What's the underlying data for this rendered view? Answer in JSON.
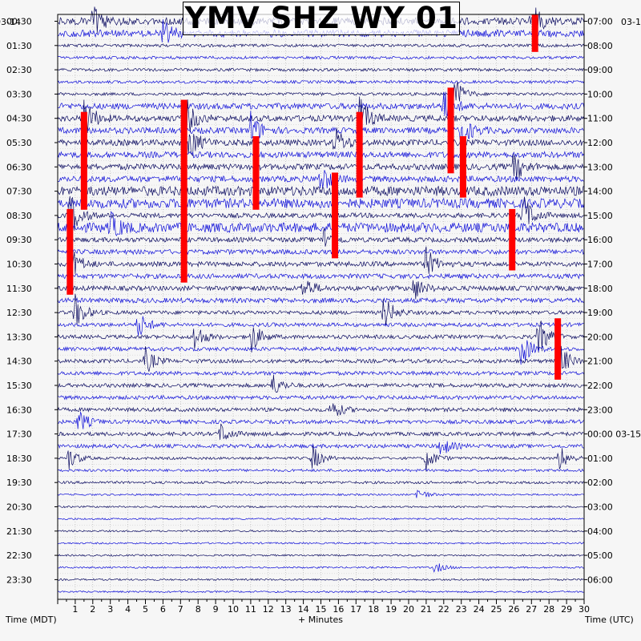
{
  "chart_data": {
    "type": "line",
    "title": "YMV SHZ WY 01",
    "xlabel": "+ Minutes",
    "left_axis_label": "Time (MDT)",
    "right_axis_label": "Time (UTC)",
    "left_date_label": "03-14",
    "right_date_label_top": "03-1",
    "right_date_label_midnight": "03-15",
    "x_ticks": [
      1,
      2,
      3,
      4,
      5,
      6,
      7,
      8,
      9,
      10,
      11,
      12,
      13,
      14,
      15,
      16,
      17,
      18,
      19,
      20,
      21,
      22,
      23,
      24,
      25,
      26,
      27,
      28,
      29,
      30
    ],
    "xlim": [
      0,
      30
    ],
    "left_time_labels": [
      "00:30",
      "01:30",
      "02:30",
      "03:30",
      "04:30",
      "05:30",
      "06:30",
      "07:30",
      "08:30",
      "09:30",
      "10:30",
      "11:30",
      "12:30",
      "13:30",
      "14:30",
      "15:30",
      "16:30",
      "17:30",
      "18:30",
      "19:30",
      "20:30",
      "21:30",
      "22:30",
      "23:30"
    ],
    "right_time_labels": [
      "07:00",
      "08:00",
      "09:00",
      "10:00",
      "11:00",
      "12:00",
      "13:00",
      "14:00",
      "15:00",
      "16:00",
      "17:00",
      "18:00",
      "19:00",
      "20:00",
      "21:00",
      "22:00",
      "23:00",
      "00:00",
      "01:00",
      "02:00",
      "03:00",
      "04:00",
      "05:00",
      "06:00"
    ],
    "trace_count": 48,
    "trace_colors": [
      "#0a0a60",
      "#1010d8"
    ],
    "clip_color": "#ff0000",
    "grid": true,
    "events": [
      {
        "trace": 0,
        "minute": 2,
        "amp": 1.4
      },
      {
        "trace": 1,
        "minute": 6,
        "amp": 1.0
      },
      {
        "trace": 0,
        "minute": 27,
        "amp": 1.8
      },
      {
        "trace": 6,
        "minute": 22.5,
        "amp": 2.0
      },
      {
        "trace": 7,
        "minute": 22,
        "amp": 1.5
      },
      {
        "trace": 8,
        "minute": 1.5,
        "amp": 2.0
      },
      {
        "trace": 8,
        "minute": 7.2,
        "amp": 2.2
      },
      {
        "trace": 8,
        "minute": 17.2,
        "amp": 2.0
      },
      {
        "trace": 9,
        "minute": 11,
        "amp": 1.6
      },
      {
        "trace": 9,
        "minute": 23,
        "amp": 1.6
      },
      {
        "trace": 10,
        "minute": 7.5,
        "amp": 1.5
      },
      {
        "trace": 10,
        "minute": 15.8,
        "amp": 1.4
      },
      {
        "trace": 12,
        "minute": 26,
        "amp": 1.4
      },
      {
        "trace": 13,
        "minute": 15,
        "amp": 1.3
      },
      {
        "trace": 16,
        "minute": 0.7,
        "amp": 2.2
      },
      {
        "trace": 16,
        "minute": 26.5,
        "amp": 2.0
      },
      {
        "trace": 17,
        "minute": 3,
        "amp": 1.2
      },
      {
        "trace": 18,
        "minute": 15.2,
        "amp": 1.2
      },
      {
        "trace": 20,
        "minute": 0.8,
        "amp": 1.4
      },
      {
        "trace": 20,
        "minute": 21,
        "amp": 1.4
      },
      {
        "trace": 22,
        "minute": 14,
        "amp": 1.1
      },
      {
        "trace": 22,
        "minute": 20.3,
        "amp": 1.1
      },
      {
        "trace": 24,
        "minute": 1,
        "amp": 1.6
      },
      {
        "trace": 24,
        "minute": 18.6,
        "amp": 1.6
      },
      {
        "trace": 25,
        "minute": 4.6,
        "amp": 1.2
      },
      {
        "trace": 26,
        "minute": 7.8,
        "amp": 1.3
      },
      {
        "trace": 26,
        "minute": 11,
        "amp": 1.6
      },
      {
        "trace": 26,
        "minute": 27.4,
        "amp": 1.8
      },
      {
        "trace": 27,
        "minute": 26.4,
        "amp": 1.6
      },
      {
        "trace": 28,
        "minute": 5,
        "amp": 1.2
      },
      {
        "trace": 28,
        "minute": 28.6,
        "amp": 1.6
      },
      {
        "trace": 30,
        "minute": 12.2,
        "amp": 1.1
      },
      {
        "trace": 32,
        "minute": 15.6,
        "amp": 1.0
      },
      {
        "trace": 33,
        "minute": 1.2,
        "amp": 1.0
      },
      {
        "trace": 34,
        "minute": 9.3,
        "amp": 0.9
      },
      {
        "trace": 35,
        "minute": 21.8,
        "amp": 1.0
      },
      {
        "trace": 36,
        "minute": 0.6,
        "amp": 1.1
      },
      {
        "trace": 36,
        "minute": 14.5,
        "amp": 1.2
      },
      {
        "trace": 36,
        "minute": 21,
        "amp": 1.1
      },
      {
        "trace": 36,
        "minute": 28.6,
        "amp": 1.2
      },
      {
        "trace": 39,
        "minute": 20.5,
        "amp": 0.6
      },
      {
        "trace": 45,
        "minute": 21.5,
        "amp": 0.5
      }
    ],
    "clips": [
      {
        "minute": 1.5,
        "trace_from": 8,
        "trace_to": 15
      },
      {
        "minute": 0.7,
        "trace_from": 16,
        "trace_to": 22
      },
      {
        "minute": 7.2,
        "trace_from": 7,
        "trace_to": 21
      },
      {
        "minute": 11.3,
        "trace_from": 10,
        "trace_to": 15
      },
      {
        "minute": 15.8,
        "trace_from": 13,
        "trace_to": 19
      },
      {
        "minute": 17.2,
        "trace_from": 8,
        "trace_to": 14
      },
      {
        "minute": 22.4,
        "trace_from": 6,
        "trace_to": 12
      },
      {
        "minute": 23.1,
        "trace_from": 10,
        "trace_to": 14
      },
      {
        "minute": 25.9,
        "trace_from": 16,
        "trace_to": 20
      },
      {
        "minute": 27.2,
        "trace_from": 0,
        "trace_to": 2
      },
      {
        "minute": 28.5,
        "trace_from": 25,
        "trace_to": 29
      }
    ]
  }
}
